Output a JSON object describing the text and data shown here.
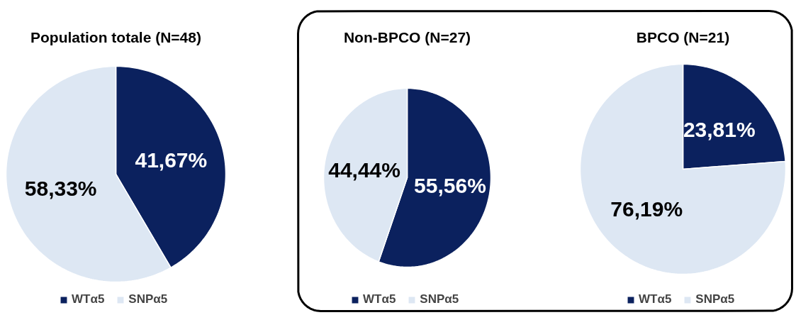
{
  "chart_data": [
    {
      "type": "pie",
      "title": "Population totale (N=48)",
      "categories": [
        "WTα5",
        "SNPα5"
      ],
      "values": [
        41.67,
        58.33
      ],
      "colors": [
        "#0b215e",
        "#dde7f3"
      ],
      "value_labels": [
        "41,67%",
        "58,33%"
      ],
      "legend": "bottom"
    },
    {
      "type": "pie",
      "title": "Non-BPCO (N=27)",
      "categories": [
        "WTα5",
        "SNPα5"
      ],
      "values": [
        55.56,
        44.44
      ],
      "colors": [
        "#0b215e",
        "#dde7f3"
      ],
      "value_labels": [
        "55,56%",
        "44,44%"
      ],
      "legend": "bottom"
    },
    {
      "type": "pie",
      "title": "BPCO (N=21)",
      "categories": [
        "WTα5",
        "SNPα5"
      ],
      "values": [
        23.81,
        76.19
      ],
      "colors": [
        "#0b215e",
        "#dde7f3"
      ],
      "value_labels": [
        "23,81%",
        "76,19%"
      ],
      "legend": "bottom"
    }
  ]
}
